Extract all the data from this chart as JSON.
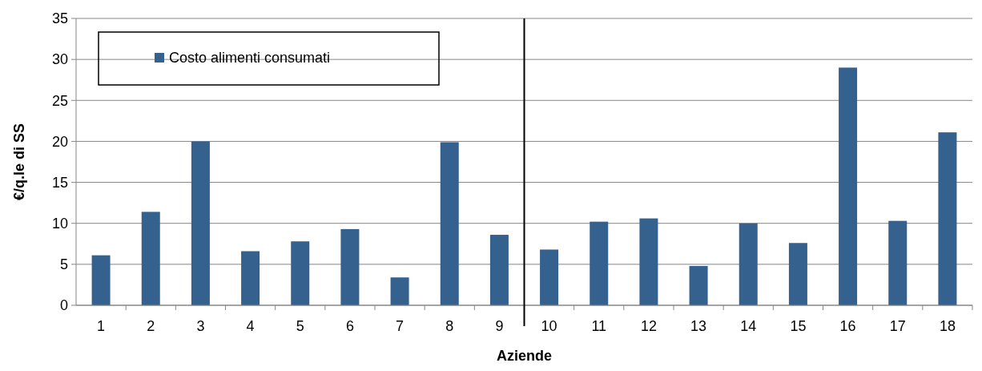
{
  "chart_data": {
    "type": "bar",
    "xlabel": "Aziende",
    "ylabel": "€/q.le di SS",
    "x": [
      1,
      2,
      3,
      4,
      5,
      6,
      7,
      8,
      9,
      10,
      11,
      12,
      13,
      14,
      15,
      16,
      17,
      18
    ],
    "xlim": [
      0.5,
      18.5
    ],
    "xticks": [
      1,
      2,
      3,
      4,
      5,
      6,
      7,
      8,
      9,
      10,
      11,
      12,
      13,
      14,
      15,
      16,
      17,
      18
    ],
    "series": [
      {
        "name": "Costo alimenti consumati",
        "color": "#35618f",
        "values": [
          6.1,
          11.4,
          20.0,
          6.6,
          7.8,
          9.3,
          3.4,
          19.9,
          8.6,
          6.8,
          10.2,
          10.6,
          4.8,
          10.0,
          7.6,
          29.0,
          10.3,
          21.1
        ]
      }
    ],
    "ylim": [
      0,
      35
    ],
    "yticks": [
      0,
      5,
      10,
      15,
      20,
      25,
      30,
      35
    ],
    "grid": "y",
    "legend": "top left",
    "ref_lines": [
      {
        "axis": "x",
        "value": 9.5,
        "color": "#000000"
      }
    ]
  }
}
